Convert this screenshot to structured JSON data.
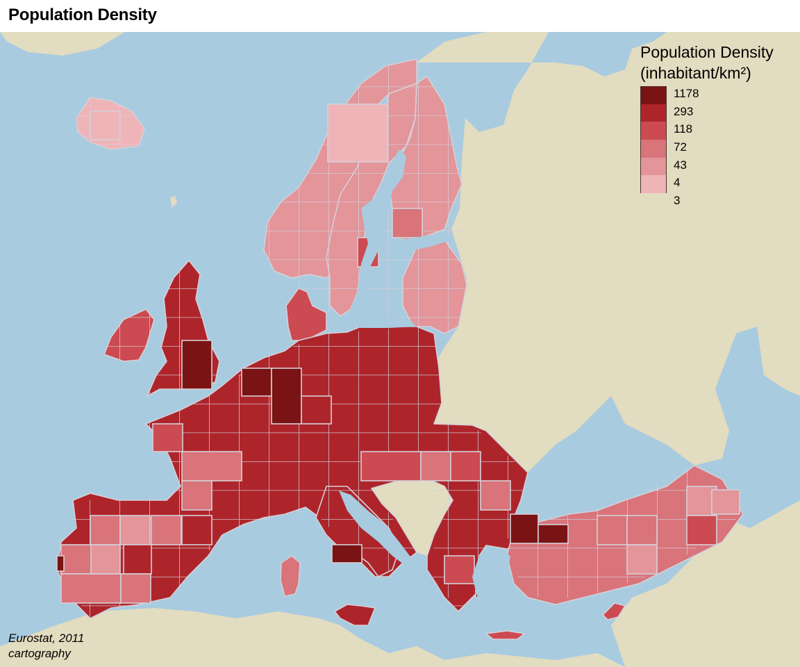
{
  "title": "Population Density",
  "legend": {
    "title_line1": "Population Density",
    "title_line2": "(inhabitant/km²)",
    "classes": [
      {
        "label": "1178",
        "color": "#7a1414"
      },
      {
        "label": "293",
        "color": "#ad252b"
      },
      {
        "label": "118",
        "color": "#cc4a51"
      },
      {
        "label": "72",
        "color": "#d8747a"
      },
      {
        "label": "43",
        "color": "#e3959a"
      },
      {
        "label": "4",
        "color": "#efb4b8"
      },
      {
        "label": "3",
        "color": null
      }
    ]
  },
  "source": {
    "line1": "Eurostat, 2011",
    "line2": "cartography"
  },
  "colors": {
    "sea": "#a8cbe0",
    "land_non_eu": "#e2dcc0",
    "grid": "#d6d0d8"
  }
}
